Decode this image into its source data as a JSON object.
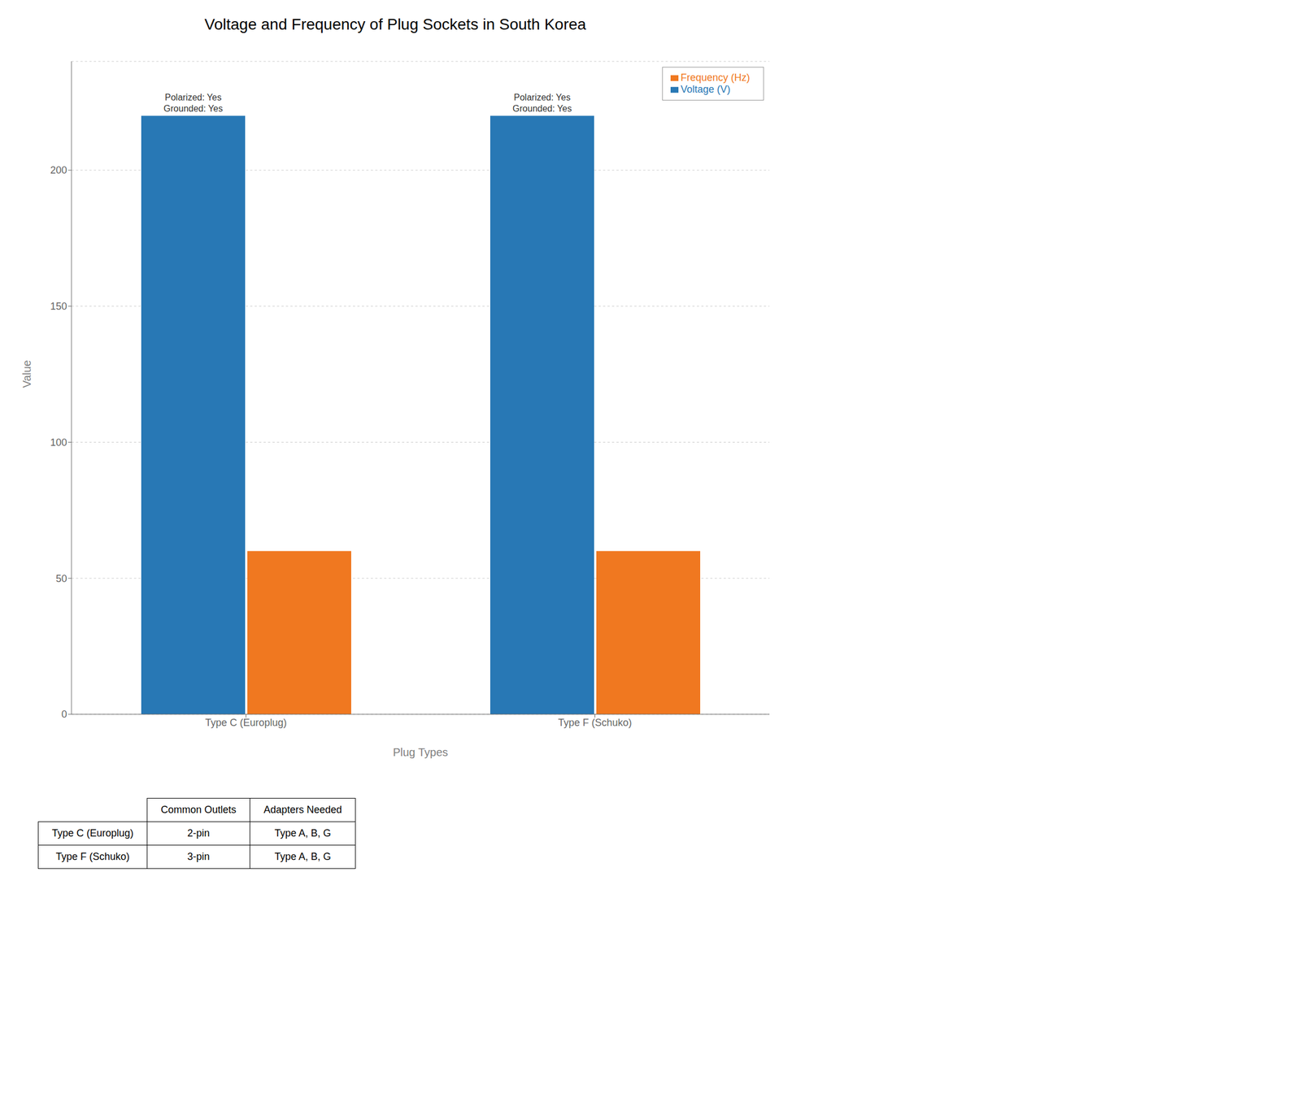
{
  "chart_data": {
    "type": "bar",
    "title": "Voltage and Frequency of Plug Sockets in South Korea",
    "xlabel": "Plug Types",
    "ylabel": "Value",
    "categories": [
      "Type C (Europlug)",
      "Type F (Schuko)"
    ],
    "series": [
      {
        "name": "Voltage (V)",
        "color": "#2878b5",
        "values": [
          220,
          220
        ]
      },
      {
        "name": "Frequency (Hz)",
        "color": "#f07820",
        "values": [
          60,
          60
        ]
      }
    ],
    "ylim": [
      0,
      240
    ],
    "yticks": [
      0,
      50,
      100,
      150,
      200
    ],
    "grid": true,
    "legend": "upper right",
    "annotations": [
      {
        "text": "Polarized: Yes\nGrounded: Yes",
        "category": "Type C (Europlug)",
        "series": "Voltage (V)"
      },
      {
        "text": "Polarized: Yes\nGrounded: Yes",
        "category": "Type F (Schuko)",
        "series": "Voltage (V)"
      }
    ],
    "table": {
      "headers": [
        "Common Outlets",
        "Adapters Needed"
      ],
      "rows": [
        [
          "Type C (Europlug)",
          "2-pin",
          "Type A, B, G"
        ],
        [
          "Type F (Schuko)",
          "3-pin",
          "Type A, B, G"
        ]
      ]
    }
  }
}
